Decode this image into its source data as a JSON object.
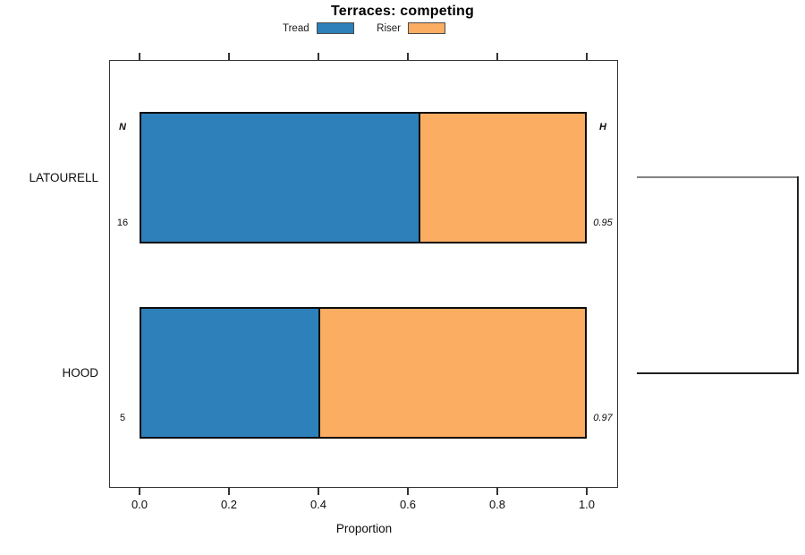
{
  "chart_data": {
    "type": "bar",
    "stacked": true,
    "orientation": "horizontal",
    "title": "Terraces: competing",
    "xlabel": "Proportion",
    "xlim": [
      0,
      1
    ],
    "x_ticks": [
      "0.0",
      "0.2",
      "0.4",
      "0.6",
      "0.8",
      "1.0"
    ],
    "grid": false,
    "legend_position": "top-center",
    "categories": [
      "LATOURELL",
      "HOOD"
    ],
    "series": [
      {
        "name": "Tread",
        "color": "#2d80b9",
        "values": [
          0.625,
          0.4
        ]
      },
      {
        "name": "Riser",
        "color": "#fbad62",
        "values": [
          0.375,
          0.6
        ]
      }
    ],
    "annotations": {
      "n_header": "N",
      "h_header": "H",
      "n_values": [
        "16",
        "5"
      ],
      "h_values": [
        "0.95",
        "0.97"
      ]
    },
    "colors": {
      "axis": "#333333",
      "bar_border": "#0d0d0d",
      "bracket_gray": "#828282",
      "bracket_black": "#222222"
    }
  }
}
